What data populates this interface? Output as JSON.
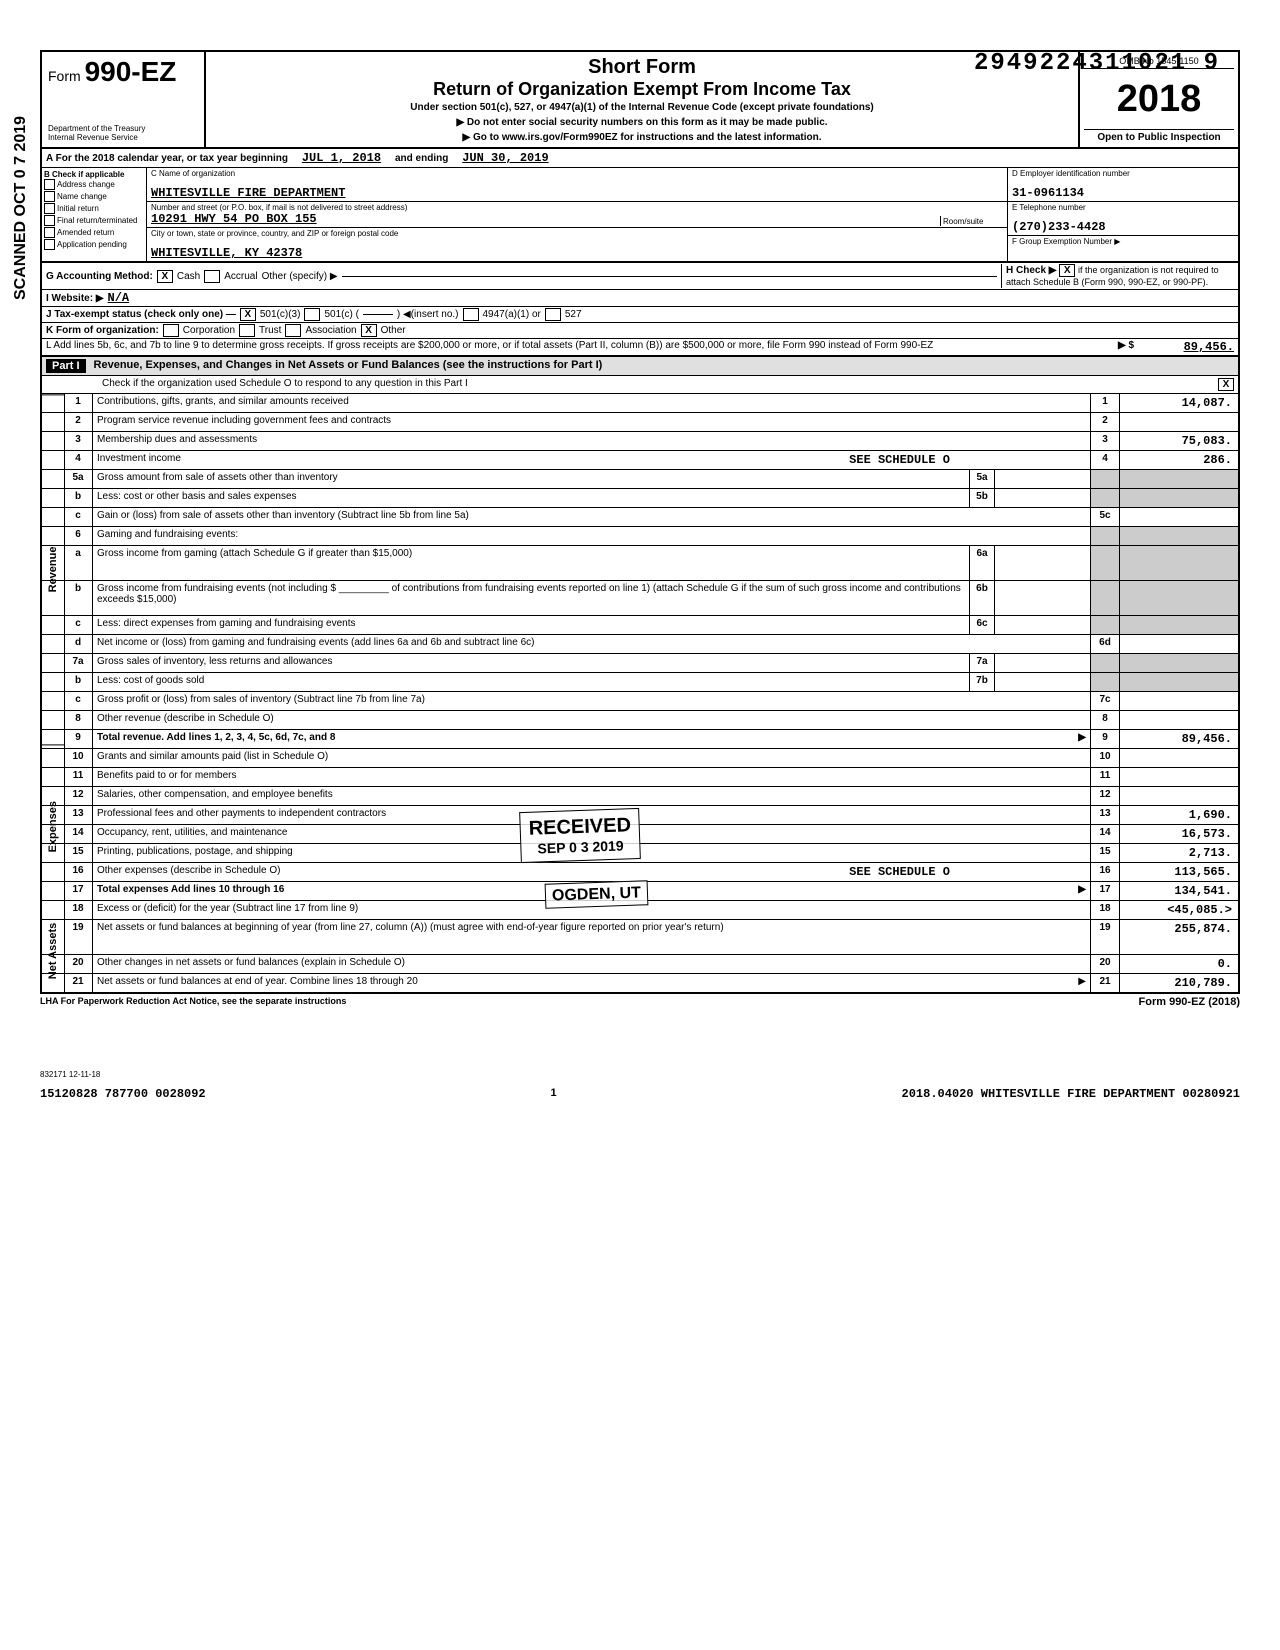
{
  "dln": "2949224311021  9",
  "form_number_prefix": "Form",
  "form_number": "990-EZ",
  "short_form": "Short Form",
  "return_title": "Return of Organization Exempt From Income Tax",
  "subtitle": "Under section 501(c), 527, or 4947(a)(1) of the Internal Revenue Code (except private foundations)",
  "warn1": "▶ Do not enter social security numbers on this form as it may be made public.",
  "warn2": "▶ Go to www.irs.gov/Form990EZ for instructions and the latest information.",
  "dept1": "Department of the Treasury",
  "dept2": "Internal Revenue Service",
  "omb": "OMB No  1545-1150",
  "year": "2018",
  "open_public": "Open to Public Inspection",
  "row_a_prefix": "A   For the 2018 calendar year, or tax year beginning",
  "row_a_begin": "JUL 1, 2018",
  "row_a_mid": "and ending",
  "row_a_end": "JUN 30, 2019",
  "b_header": "B  Check if applicable",
  "b_checks": [
    "Address change",
    "Name change",
    "Initial return",
    "Final return/terminated",
    "Amended return",
    "Application pending"
  ],
  "c_label": "C Name of organization",
  "org_name": "WHITESVILLE FIRE DEPARTMENT",
  "addr_label": "Number and street (or P.O. box, if mail is not delivered to street address)",
  "room_label": "Room/suite",
  "addr": "10291 HWY 54 PO BOX 155",
  "city_label": "City or town, state or province, country, and ZIP or foreign postal code",
  "city": "WHITESVILLE, KY   42378",
  "d_label": "D Employer identification number",
  "ein": "31-0961134",
  "e_label": "E  Telephone number",
  "phone": "(270)233-4428",
  "f_label": "F  Group Exemption Number ▶",
  "g_label": "G  Accounting Method:",
  "g_cash": "Cash",
  "g_accrual": "Accrual",
  "g_other": "Other (specify) ▶",
  "h_label": "H Check ▶",
  "h_text": "if the organization is not required to attach Schedule B (Form 990, 990-EZ, or 990-PF).",
  "i_label": "I   Website: ▶",
  "website": "N/A",
  "j_label": "J   Tax-exempt status (check only one) —",
  "j_501c3": "501(c)(3)",
  "j_501c": "501(c) (",
  "j_insert": ") ◀(insert no.)",
  "j_4947": "4947(a)(1) or",
  "j_527": "527",
  "k_label": "K  Form of organization:",
  "k_opts": [
    "Corporation",
    "Trust",
    "Association",
    "Other"
  ],
  "l_text": "L   Add lines 5b, 6c, and 7b to line 9 to determine gross receipts. If gross receipts are $200,000 or more, or if total assets (Part II, column (B)) are $500,000 or more, file Form 990 instead of Form 990-EZ",
  "l_arrow": "▶  $",
  "l_value": "89,456.",
  "part1_label": "Part I",
  "part1_title": "Revenue, Expenses, and Changes in Net Assets or Fund Balances (see the instructions for Part I)",
  "part1_sub": "Check if the organization used Schedule O to respond to any question in this Part I",
  "side_labels": {
    "rev": "Revenue",
    "exp": "Expenses",
    "net": "Net Assets"
  },
  "rows": [
    {
      "n": "1",
      "desc": "Contributions, gifts, grants, and similar amounts received",
      "rn": "1",
      "val": "14,087."
    },
    {
      "n": "2",
      "desc": "Program service revenue including government fees and contracts",
      "rn": "2",
      "val": ""
    },
    {
      "n": "3",
      "desc": "Membership dues and assessments",
      "rn": "3",
      "val": "75,083."
    },
    {
      "n": "4",
      "desc": "Investment income",
      "extra": "SEE SCHEDULE O",
      "rn": "4",
      "val": "286."
    },
    {
      "n": "5a",
      "desc": "Gross amount from sale of assets other than inventory",
      "mid": "5a",
      "shaded": true
    },
    {
      "n": "b",
      "desc": "Less: cost or other basis and sales expenses",
      "mid": "5b",
      "shaded": true
    },
    {
      "n": "c",
      "desc": "Gain or (loss) from sale of assets other than inventory (Subtract line 5b from line 5a)",
      "rn": "5c",
      "val": ""
    },
    {
      "n": "6",
      "desc": "Gaming and fundraising events:",
      "shaded": true,
      "noval": true
    },
    {
      "n": "a",
      "desc": "Gross income from gaming (attach Schedule G if greater than $15,000)",
      "mid": "6a",
      "shaded": true,
      "tall": true
    },
    {
      "n": "b",
      "desc": "Gross income from fundraising events (not including $ _________ of contributions from fundraising events reported on line 1) (attach Schedule G if the sum of such gross income and contributions exceeds $15,000)",
      "mid": "6b",
      "shaded": true,
      "tall": true
    },
    {
      "n": "c",
      "desc": "Less: direct expenses from gaming and fundraising events",
      "mid": "6c",
      "shaded": true
    },
    {
      "n": "d",
      "desc": "Net income or (loss) from gaming and fundraising events (add lines 6a and 6b and subtract line 6c)",
      "rn": "6d",
      "val": ""
    },
    {
      "n": "7a",
      "desc": "Gross sales of inventory, less returns and allowances",
      "mid": "7a",
      "shaded": true
    },
    {
      "n": "b",
      "desc": "Less: cost of goods sold",
      "mid": "7b",
      "shaded": true
    },
    {
      "n": "c",
      "desc": "Gross profit or (loss) from sales of inventory (Subtract line 7b from line 7a)",
      "rn": "7c",
      "val": ""
    },
    {
      "n": "8",
      "desc": "Other revenue (describe in Schedule O)",
      "rn": "8",
      "val": ""
    },
    {
      "n": "9",
      "desc": "Total revenue. Add lines 1, 2, 3, 4, 5c, 6d, 7c, and 8",
      "rn": "9",
      "val": "89,456.",
      "bold": true,
      "arrow": true
    },
    {
      "n": "10",
      "desc": "Grants and similar amounts paid (list in Schedule O)",
      "rn": "10",
      "val": ""
    },
    {
      "n": "11",
      "desc": "Benefits paid to or for members",
      "rn": "11",
      "val": ""
    },
    {
      "n": "12",
      "desc": "Salaries, other compensation, and employee benefits",
      "rn": "12",
      "val": ""
    },
    {
      "n": "13",
      "desc": "Professional fees and other payments to independent contractors",
      "rn": "13",
      "val": "1,690."
    },
    {
      "n": "14",
      "desc": "Occupancy, rent, utilities, and maintenance",
      "rn": "14",
      "val": "16,573."
    },
    {
      "n": "15",
      "desc": "Printing, publications, postage, and shipping",
      "rn": "15",
      "val": "2,713."
    },
    {
      "n": "16",
      "desc": "Other expenses (describe in Schedule O)",
      "extra": "SEE SCHEDULE O",
      "rn": "16",
      "val": "113,565."
    },
    {
      "n": "17",
      "desc": "Total expenses  Add lines 10 through 16",
      "rn": "17",
      "val": "134,541.",
      "bold": true,
      "arrow": true
    },
    {
      "n": "18",
      "desc": "Excess or (deficit) for the year (Subtract line 17 from line 9)",
      "rn": "18",
      "val": "<45,085.>"
    },
    {
      "n": "19",
      "desc": "Net assets or fund balances at beginning of year (from line 27, column (A)) (must agree with end-of-year figure reported on prior year's return)",
      "rn": "19",
      "val": "255,874.",
      "tall": true
    },
    {
      "n": "20",
      "desc": "Other changes in net assets or fund balances (explain in Schedule O)",
      "rn": "20",
      "val": "0."
    },
    {
      "n": "21",
      "desc": "Net assets or fund balances at end of year. Combine lines 18 through 20",
      "rn": "21",
      "val": "210,789.",
      "arrow": true
    }
  ],
  "footer_left": "LHA   For Paperwork Reduction Act Notice, see the separate instructions",
  "footer_right": "Form 990-EZ (2018)",
  "bottom1": "832171  12-11-18",
  "bottom_left": "15120828 787700 0028092",
  "bottom_mid": "1",
  "bottom_right": "2018.04020 WHITESVILLE FIRE DEPARTMENT 00280921",
  "stamp_received_1": "RECEIVED",
  "stamp_received_2": "SEP 0 3 2019",
  "stamp_ogden": "OGDEN, UT",
  "scanned": "SCANNED OCT 0 7 2019"
}
